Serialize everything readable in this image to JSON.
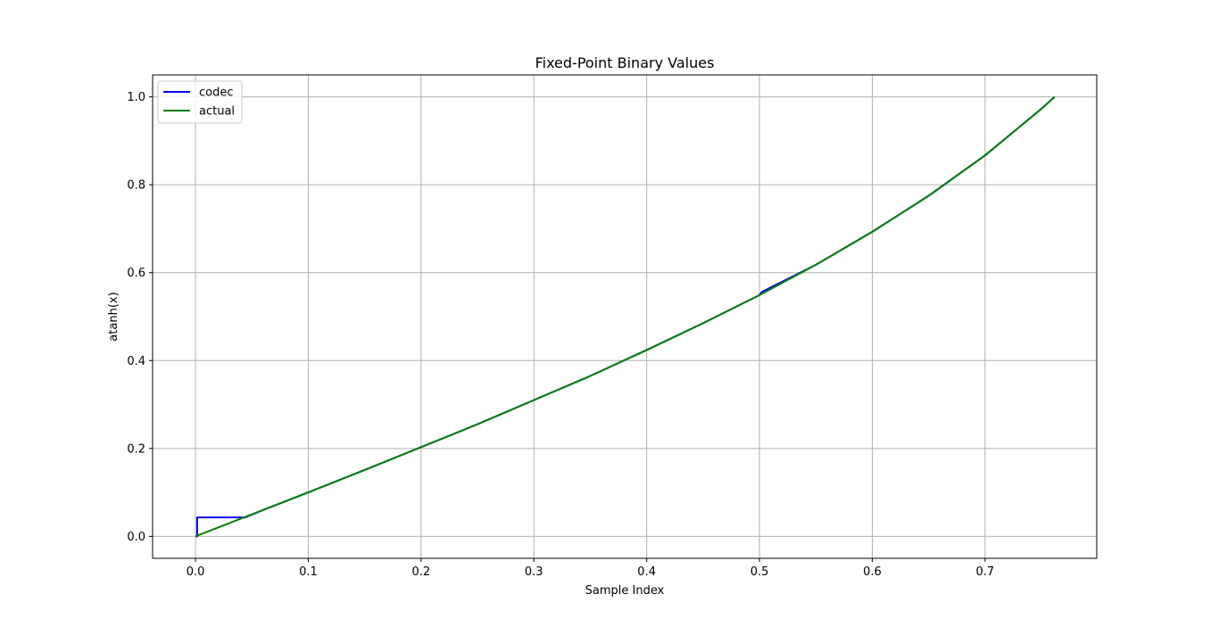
{
  "chart_data": {
    "type": "line",
    "title": "Fixed-Point Binary Values",
    "xlabel": "Sample Index",
    "ylabel": "atanh(x)",
    "xlim": [
      -0.038,
      0.799
    ],
    "ylim": [
      -0.05,
      1.05
    ],
    "xticks": [
      0.0,
      0.1,
      0.2,
      0.3,
      0.4,
      0.5,
      0.6,
      0.7
    ],
    "xtick_labels": [
      "0.0",
      "0.1",
      "0.2",
      "0.3",
      "0.4",
      "0.5",
      "0.6",
      "0.7"
    ],
    "yticks": [
      0.0,
      0.2,
      0.4,
      0.6,
      0.8,
      1.0
    ],
    "ytick_labels": [
      "0.0",
      "0.2",
      "0.4",
      "0.6",
      "0.8",
      "1.0"
    ],
    "grid": true,
    "legend_position": "upper-left",
    "series": [
      {
        "name": "codec",
        "color": "#0000ff",
        "x": [
          0.0,
          0.0015,
          0.0015,
          0.044,
          0.06,
          0.1,
          0.15,
          0.2,
          0.25,
          0.3,
          0.35,
          0.4,
          0.45,
          0.5,
          0.502,
          0.55,
          0.6,
          0.65,
          0.7,
          0.75,
          0.7616
        ],
        "y": [
          0.0,
          0.0,
          0.043,
          0.043,
          0.06,
          0.1,
          0.151,
          0.203,
          0.255,
          0.31,
          0.365,
          0.424,
          0.485,
          0.549,
          0.556,
          0.618,
          0.693,
          0.775,
          0.867,
          0.973,
          1.0
        ]
      },
      {
        "name": "actual",
        "color": "#008000",
        "x": [
          0.0,
          0.05,
          0.1,
          0.15,
          0.2,
          0.25,
          0.3,
          0.35,
          0.4,
          0.45,
          0.5,
          0.55,
          0.6,
          0.65,
          0.7,
          0.75,
          0.7616
        ],
        "y": [
          0.0,
          0.05,
          0.1,
          0.151,
          0.203,
          0.255,
          0.31,
          0.365,
          0.424,
          0.485,
          0.549,
          0.618,
          0.693,
          0.775,
          0.867,
          0.973,
          1.0
        ]
      }
    ]
  }
}
